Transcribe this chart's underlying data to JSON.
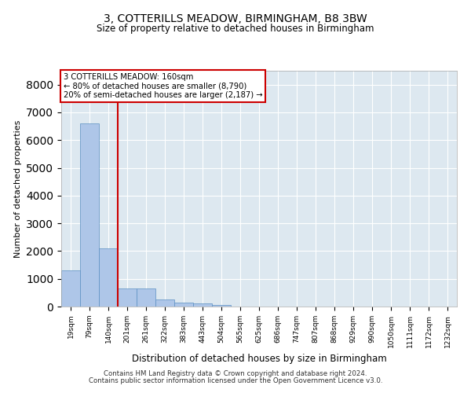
{
  "title": "3, COTTERILLS MEADOW, BIRMINGHAM, B8 3BW",
  "subtitle": "Size of property relative to detached houses in Birmingham",
  "xlabel": "Distribution of detached houses by size in Birmingham",
  "ylabel": "Number of detached properties",
  "bar_values": [
    1300,
    6600,
    2100,
    650,
    640,
    250,
    130,
    100,
    70,
    0,
    0,
    0,
    0,
    0,
    0,
    0,
    0,
    0,
    0,
    0
  ],
  "bar_labels": [
    "19sqm",
    "79sqm",
    "140sqm",
    "201sqm",
    "261sqm",
    "322sqm",
    "383sqm",
    "443sqm",
    "504sqm",
    "565sqm",
    "625sqm",
    "686sqm",
    "747sqm",
    "807sqm",
    "868sqm",
    "929sqm",
    "990sqm",
    "1050sqm",
    "1111sqm",
    "1172sqm",
    "1232sqm"
  ],
  "bar_color": "#aec6e8",
  "bar_edgecolor": "#5a8fc2",
  "bar_width": 1.0,
  "vline_x": 2.5,
  "vline_color": "#cc0000",
  "annotation_text": "3 COTTERILLS MEADOW: 160sqm\n← 80% of detached houses are smaller (8,790)\n20% of semi-detached houses are larger (2,187) →",
  "annotation_box_color": "#ffffff",
  "annotation_box_edgecolor": "#cc0000",
  "ylim": [
    0,
    8500
  ],
  "yticks": [
    0,
    1000,
    2000,
    3000,
    4000,
    5000,
    6000,
    7000,
    8000
  ],
  "background_color": "#dde8f0",
  "grid_color": "#ffffff",
  "footer_line1": "Contains HM Land Registry data © Crown copyright and database right 2024.",
  "footer_line2": "Contains public sector information licensed under the Open Government Licence v3.0."
}
